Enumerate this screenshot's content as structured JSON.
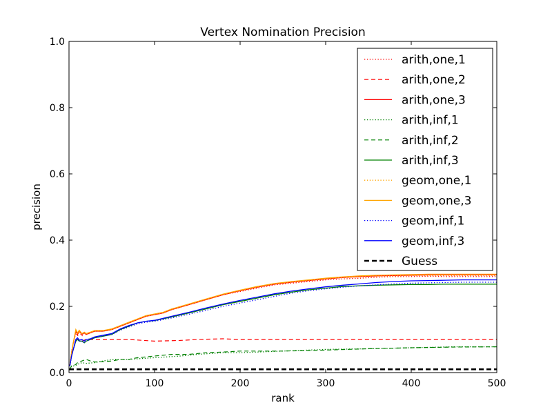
{
  "chart_data": {
    "type": "line",
    "title": "Vertex Nomination Precision",
    "xlabel": "rank",
    "ylabel": "precision",
    "xlim": [
      0,
      500
    ],
    "ylim": [
      0.0,
      1.0
    ],
    "xticks": [
      0,
      100,
      200,
      300,
      400,
      500
    ],
    "yticks": [
      0.0,
      0.2,
      0.4,
      0.6,
      0.8,
      1.0
    ],
    "xtick_labels": [
      "0",
      "100",
      "200",
      "300",
      "400",
      "500"
    ],
    "ytick_labels": [
      "0.0",
      "0.2",
      "0.4",
      "0.6",
      "0.8",
      "1.0"
    ],
    "grid": false,
    "legend_position": "top-right",
    "series": [
      {
        "name": "arith,one,1",
        "color": "#ff0000",
        "style": "dotted",
        "x": [
          1,
          3,
          5,
          8,
          10,
          12,
          15,
          18,
          20,
          25,
          30,
          40,
          50,
          60,
          70,
          80,
          90,
          100,
          110,
          120,
          140,
          160,
          180,
          200,
          220,
          240,
          260,
          280,
          300,
          320,
          340,
          360,
          380,
          400,
          420,
          440,
          460,
          480,
          500
        ],
        "y": [
          0.02,
          0.06,
          0.09,
          0.12,
          0.11,
          0.125,
          0.11,
          0.12,
          0.115,
          0.12,
          0.125,
          0.125,
          0.13,
          0.14,
          0.15,
          0.16,
          0.17,
          0.175,
          0.18,
          0.19,
          0.205,
          0.22,
          0.235,
          0.245,
          0.255,
          0.265,
          0.27,
          0.275,
          0.28,
          0.283,
          0.285,
          0.288,
          0.29,
          0.29,
          0.291,
          0.29,
          0.29,
          0.29,
          0.29
        ]
      },
      {
        "name": "arith,one,2",
        "color": "#ff0000",
        "style": "dashed",
        "x": [
          1,
          3,
          5,
          8,
          10,
          15,
          20,
          30,
          50,
          70,
          100,
          130,
          150,
          180,
          200,
          250,
          300,
          350,
          400,
          450,
          500
        ],
        "y": [
          0.02,
          0.06,
          0.09,
          0.1,
          0.1,
          0.095,
          0.1,
          0.1,
          0.1,
          0.1,
          0.095,
          0.097,
          0.1,
          0.102,
          0.1,
          0.1,
          0.1,
          0.1,
          0.1,
          0.1,
          0.1
        ]
      },
      {
        "name": "arith,one,3",
        "color": "#ff0000",
        "style": "solid",
        "x": [
          1,
          3,
          5,
          8,
          10,
          12,
          15,
          18,
          20,
          25,
          30,
          40,
          50,
          60,
          70,
          80,
          90,
          100,
          110,
          120,
          140,
          160,
          180,
          200,
          220,
          240,
          260,
          280,
          300,
          320,
          340,
          360,
          380,
          400,
          420,
          440,
          460,
          480,
          500
        ],
        "y": [
          0.02,
          0.06,
          0.09,
          0.125,
          0.115,
          0.125,
          0.115,
          0.12,
          0.115,
          0.12,
          0.125,
          0.125,
          0.13,
          0.14,
          0.15,
          0.16,
          0.17,
          0.175,
          0.18,
          0.19,
          0.205,
          0.22,
          0.235,
          0.247,
          0.258,
          0.267,
          0.273,
          0.278,
          0.283,
          0.287,
          0.29,
          0.292,
          0.293,
          0.294,
          0.295,
          0.295,
          0.295,
          0.295,
          0.295
        ]
      },
      {
        "name": "arith,inf,1",
        "color": "#008000",
        "style": "dotted",
        "x": [
          1,
          3,
          5,
          8,
          10,
          15,
          20,
          30,
          50,
          70,
          100,
          130,
          150,
          180,
          200,
          250,
          300,
          350,
          400,
          450,
          500
        ],
        "y": [
          0.01,
          0.02,
          0.02,
          0.022,
          0.025,
          0.03,
          0.028,
          0.03,
          0.04,
          0.04,
          0.045,
          0.05,
          0.055,
          0.06,
          0.06,
          0.065,
          0.07,
          0.072,
          0.075,
          0.078,
          0.078
        ]
      },
      {
        "name": "arith,inf,2",
        "color": "#008000",
        "style": "dashed",
        "x": [
          1,
          3,
          5,
          8,
          10,
          15,
          20,
          25,
          30,
          40,
          50,
          60,
          70,
          80,
          100,
          120,
          140,
          160,
          180,
          200,
          250,
          300,
          350,
          400,
          450,
          500
        ],
        "y": [
          0.01,
          0.02,
          0.02,
          0.025,
          0.03,
          0.035,
          0.04,
          0.035,
          0.032,
          0.033,
          0.035,
          0.04,
          0.04,
          0.045,
          0.05,
          0.055,
          0.055,
          0.06,
          0.062,
          0.065,
          0.065,
          0.068,
          0.072,
          0.075,
          0.077,
          0.078
        ]
      },
      {
        "name": "arith,inf,3",
        "color": "#008000",
        "style": "solid",
        "x": [
          1,
          3,
          5,
          8,
          10,
          12,
          15,
          18,
          20,
          25,
          30,
          40,
          50,
          60,
          70,
          80,
          90,
          100,
          120,
          140,
          160,
          180,
          200,
          220,
          240,
          260,
          280,
          300,
          320,
          340,
          360,
          380,
          400,
          420,
          440,
          460,
          480,
          500
        ],
        "y": [
          0.02,
          0.05,
          0.07,
          0.095,
          0.1,
          0.095,
          0.095,
          0.09,
          0.095,
          0.1,
          0.105,
          0.11,
          0.115,
          0.13,
          0.14,
          0.15,
          0.155,
          0.157,
          0.168,
          0.18,
          0.192,
          0.205,
          0.215,
          0.225,
          0.235,
          0.243,
          0.25,
          0.255,
          0.26,
          0.262,
          0.264,
          0.265,
          0.266,
          0.266,
          0.267,
          0.267,
          0.267,
          0.267
        ]
      },
      {
        "name": "geom,one,1",
        "color": "#ffa500",
        "style": "dotted",
        "x": [
          1,
          3,
          5,
          8,
          10,
          12,
          15,
          18,
          20,
          25,
          30,
          40,
          50,
          60,
          70,
          80,
          90,
          100,
          110,
          120,
          140,
          160,
          180,
          200,
          220,
          240,
          260,
          280,
          300,
          320,
          340,
          360,
          380,
          400,
          420,
          440,
          460,
          480,
          500
        ],
        "y": [
          0.02,
          0.06,
          0.09,
          0.125,
          0.115,
          0.125,
          0.115,
          0.12,
          0.115,
          0.12,
          0.125,
          0.125,
          0.13,
          0.14,
          0.15,
          0.16,
          0.17,
          0.175,
          0.18,
          0.19,
          0.205,
          0.22,
          0.235,
          0.247,
          0.258,
          0.267,
          0.273,
          0.278,
          0.283,
          0.287,
          0.289,
          0.291,
          0.292,
          0.293,
          0.293,
          0.293,
          0.293,
          0.293,
          0.293
        ]
      },
      {
        "name": "geom,one,3",
        "color": "#ffa500",
        "style": "solid",
        "x": [
          1,
          3,
          5,
          8,
          10,
          12,
          15,
          18,
          20,
          25,
          30,
          40,
          50,
          60,
          70,
          80,
          90,
          100,
          110,
          120,
          140,
          160,
          180,
          200,
          220,
          240,
          260,
          280,
          300,
          320,
          340,
          360,
          380,
          400,
          420,
          440,
          460,
          480,
          500
        ],
        "y": [
          0.02,
          0.06,
          0.09,
          0.13,
          0.12,
          0.128,
          0.118,
          0.122,
          0.118,
          0.122,
          0.127,
          0.127,
          0.132,
          0.142,
          0.152,
          0.162,
          0.172,
          0.177,
          0.182,
          0.192,
          0.207,
          0.222,
          0.237,
          0.249,
          0.26,
          0.269,
          0.275,
          0.28,
          0.285,
          0.289,
          0.292,
          0.294,
          0.295,
          0.296,
          0.297,
          0.297,
          0.297,
          0.297,
          0.297
        ]
      },
      {
        "name": "geom,inf,1",
        "color": "#0000ff",
        "style": "dotted",
        "x": [
          1,
          3,
          5,
          8,
          10,
          12,
          15,
          18,
          20,
          25,
          30,
          40,
          50,
          60,
          70,
          80,
          90,
          100,
          120,
          140,
          160,
          180,
          200,
          220,
          240,
          260,
          280,
          300,
          320,
          340,
          360,
          380,
          400,
          420,
          440,
          460,
          480,
          500
        ],
        "y": [
          0.02,
          0.05,
          0.07,
          0.095,
          0.1,
          0.095,
          0.095,
          0.09,
          0.095,
          0.1,
          0.105,
          0.11,
          0.115,
          0.128,
          0.138,
          0.147,
          0.152,
          0.155,
          0.165,
          0.176,
          0.188,
          0.2,
          0.21,
          0.22,
          0.23,
          0.24,
          0.247,
          0.253,
          0.258,
          0.262,
          0.265,
          0.268,
          0.27,
          0.271,
          0.272,
          0.273,
          0.273,
          0.273
        ]
      },
      {
        "name": "geom,inf,3",
        "color": "#0000ff",
        "style": "solid",
        "x": [
          1,
          3,
          5,
          8,
          10,
          12,
          15,
          18,
          20,
          25,
          30,
          40,
          50,
          60,
          70,
          80,
          90,
          100,
          120,
          140,
          160,
          180,
          200,
          220,
          240,
          260,
          280,
          300,
          320,
          340,
          360,
          380,
          400,
          420,
          440,
          460,
          480,
          500
        ],
        "y": [
          0.02,
          0.05,
          0.07,
          0.1,
          0.105,
          0.098,
          0.1,
          0.095,
          0.1,
          0.102,
          0.108,
          0.113,
          0.118,
          0.132,
          0.142,
          0.15,
          0.155,
          0.158,
          0.17,
          0.182,
          0.195,
          0.207,
          0.218,
          0.228,
          0.238,
          0.246,
          0.253,
          0.259,
          0.264,
          0.268,
          0.272,
          0.275,
          0.277,
          0.278,
          0.279,
          0.28,
          0.28,
          0.28
        ]
      },
      {
        "name": "Guess",
        "color": "#000000",
        "style": "bold-dashed",
        "x": [
          0,
          500
        ],
        "y": [
          0.01,
          0.01
        ]
      }
    ]
  }
}
